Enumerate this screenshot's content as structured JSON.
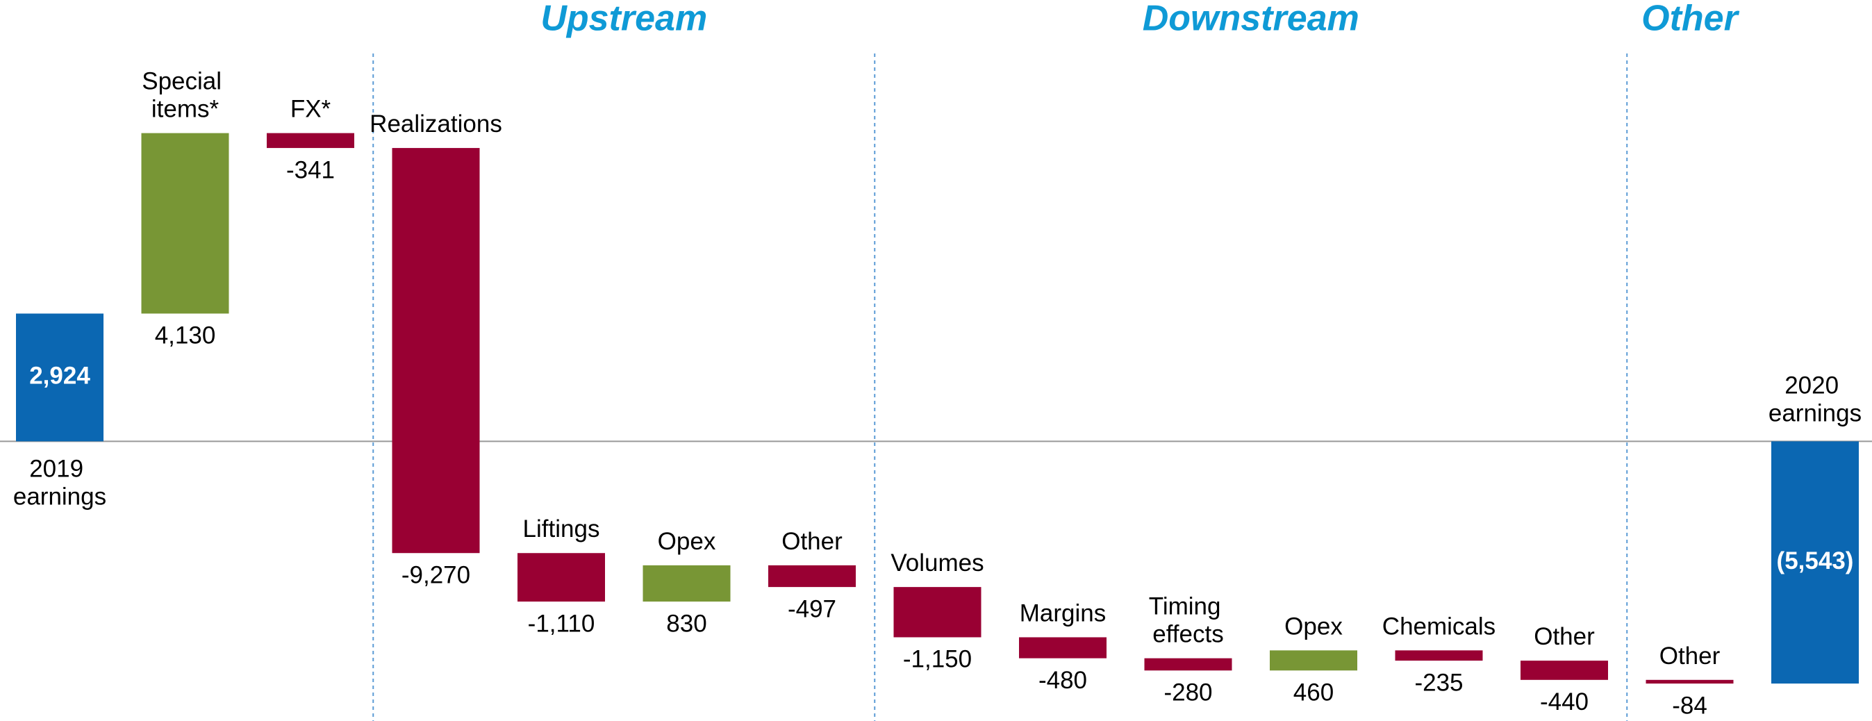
{
  "chart_data": {
    "type": "waterfall",
    "categories": [
      "2019 earnings",
      "Special items*",
      "FX*",
      "Realizations",
      "Liftings",
      "Opex",
      "Other",
      "Volumes",
      "Margins",
      "Timing effects",
      "Opex",
      "Chemicals",
      "Other",
      "Other",
      "2020 earnings"
    ],
    "values": [
      2924,
      4130,
      -341,
      -9270,
      -1110,
      830,
      -497,
      -1150,
      -480,
      -280,
      460,
      -235,
      -440,
      -84,
      -5543
    ],
    "value_labels": [
      "2,924",
      "4,130",
      "-341",
      "-9,270",
      "-1,110",
      "830",
      "-497",
      "-1,150",
      "-480",
      "-280",
      "460",
      "-235",
      "-440",
      "-84",
      "(5,543)"
    ],
    "groups": [
      {
        "name": "Upstream",
        "start": 3,
        "end": 6
      },
      {
        "name": "Downstream",
        "start": 7,
        "end": 12
      },
      {
        "name": "Other",
        "start": 13,
        "end": 13
      }
    ],
    "colors": {
      "total": "#0b67b2",
      "increase": "#789635",
      "decrease": "#990033"
    },
    "ylim": [
      -6400,
      10100
    ]
  }
}
